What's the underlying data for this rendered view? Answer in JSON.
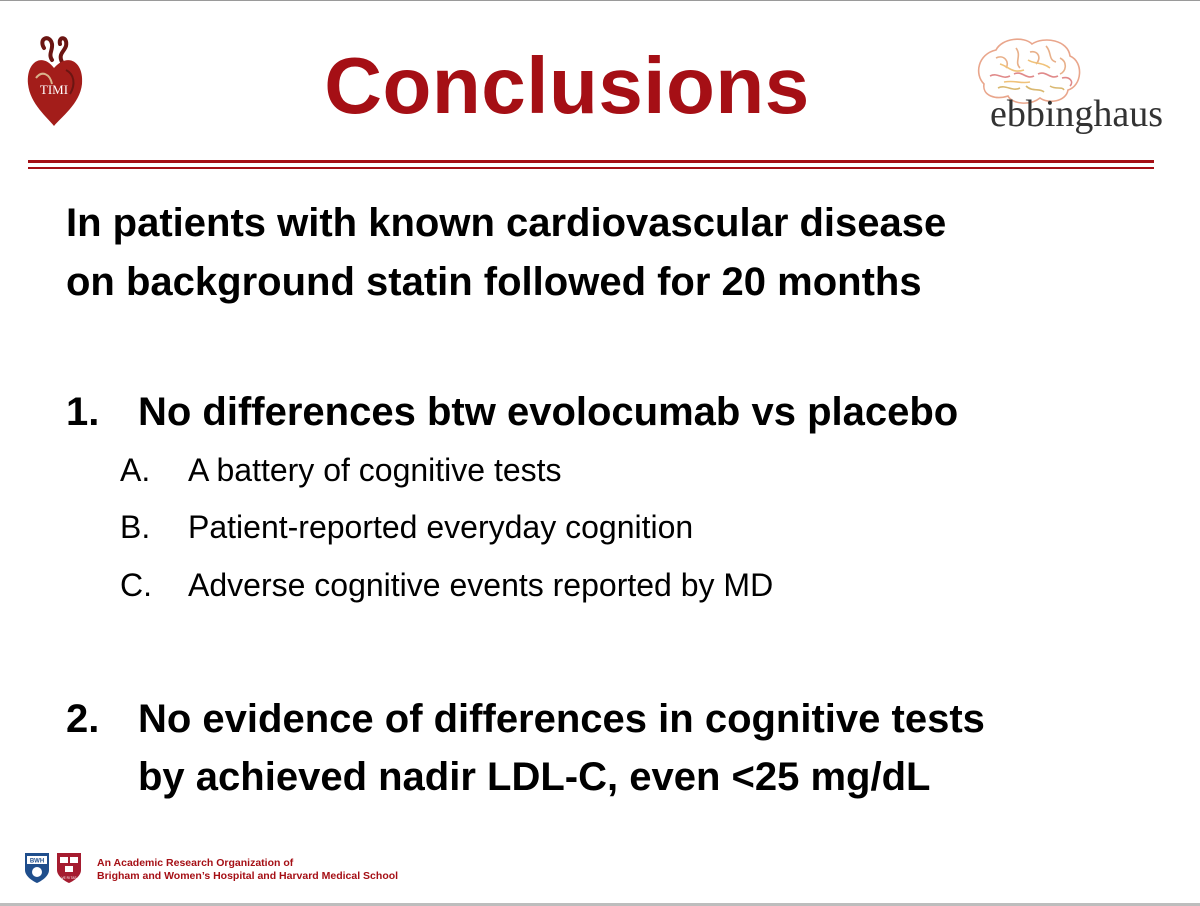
{
  "slide": {
    "title": "Conclusions",
    "logos": {
      "left": {
        "icon": "timi-logo",
        "text": "TIMI"
      },
      "right": {
        "icon": "brain-icon",
        "text": "ebbinghaus"
      }
    },
    "intro": [
      "In patients with known cardiovascular disease",
      "on background statin followed for 20 months"
    ],
    "points": [
      {
        "number": "1.",
        "lines": [
          "No differences btw evolocumab vs placebo"
        ],
        "subitems": [
          {
            "letter": "A.",
            "text": "A battery of cognitive tests"
          },
          {
            "letter": "B.",
            "text": "Patient-reported everyday cognition"
          },
          {
            "letter": "C.",
            "text": "Adverse cognitive events reported by MD"
          }
        ]
      },
      {
        "number": "2.",
        "lines": [
          "No evidence of differences in cognitive tests",
          "by achieved nadir LDL-C, even <25 mg/dL"
        ]
      }
    ],
    "footer": {
      "line1": "An Academic Research Organization of",
      "line2": "Brigham and Women’s Hospital and Harvard Medical School",
      "shields": [
        {
          "icon": "bwh-shield-icon",
          "text": "BWH"
        },
        {
          "icon": "harvard-shield-icon",
          "text": "VE RI TAS"
        }
      ]
    },
    "colors": {
      "accent": "#a50f15",
      "text": "#000000"
    }
  }
}
